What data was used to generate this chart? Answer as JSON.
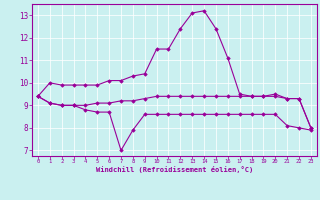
{
  "xlabel": "Windchill (Refroidissement éolien,°C)",
  "background_color": "#caf0f0",
  "line_color": "#990099",
  "grid_color": "#aadddd",
  "xlim": [
    -0.5,
    23.5
  ],
  "ylim": [
    6.75,
    13.5
  ],
  "yticks": [
    7,
    8,
    9,
    10,
    11,
    12,
    13
  ],
  "xticks": [
    0,
    1,
    2,
    3,
    4,
    5,
    6,
    7,
    8,
    9,
    10,
    11,
    12,
    13,
    14,
    15,
    16,
    17,
    18,
    19,
    20,
    21,
    22,
    23
  ],
  "line1_x": [
    0,
    1,
    2,
    3,
    4,
    5,
    6,
    7,
    8,
    9,
    10,
    11,
    12,
    13,
    14,
    15,
    16,
    17,
    18,
    19,
    20,
    21,
    22,
    23
  ],
  "line1_y": [
    9.4,
    10.0,
    9.9,
    9.9,
    9.9,
    9.9,
    10.1,
    10.1,
    10.3,
    10.4,
    11.5,
    11.5,
    12.4,
    13.1,
    13.2,
    12.4,
    11.1,
    9.5,
    9.4,
    9.4,
    9.5,
    9.3,
    9.3,
    8.0
  ],
  "line2_x": [
    0,
    1,
    2,
    3,
    4,
    5,
    6,
    7,
    8,
    9,
    10,
    11,
    12,
    13,
    14,
    15,
    16,
    17,
    18,
    19,
    20,
    21,
    22,
    23
  ],
  "line2_y": [
    9.4,
    9.1,
    9.0,
    9.0,
    8.8,
    8.7,
    8.7,
    7.0,
    7.9,
    8.6,
    8.6,
    8.6,
    8.6,
    8.6,
    8.6,
    8.6,
    8.6,
    8.6,
    8.6,
    8.6,
    8.6,
    8.1,
    8.0,
    7.9
  ],
  "line3_x": [
    0,
    1,
    2,
    3,
    4,
    5,
    6,
    7,
    8,
    9,
    10,
    11,
    12,
    13,
    14,
    15,
    16,
    17,
    18,
    19,
    20,
    21,
    22,
    23
  ],
  "line3_y": [
    9.4,
    9.1,
    9.0,
    9.0,
    9.0,
    9.1,
    9.1,
    9.2,
    9.2,
    9.3,
    9.4,
    9.4,
    9.4,
    9.4,
    9.4,
    9.4,
    9.4,
    9.4,
    9.4,
    9.4,
    9.4,
    9.3,
    9.3,
    8.0
  ]
}
